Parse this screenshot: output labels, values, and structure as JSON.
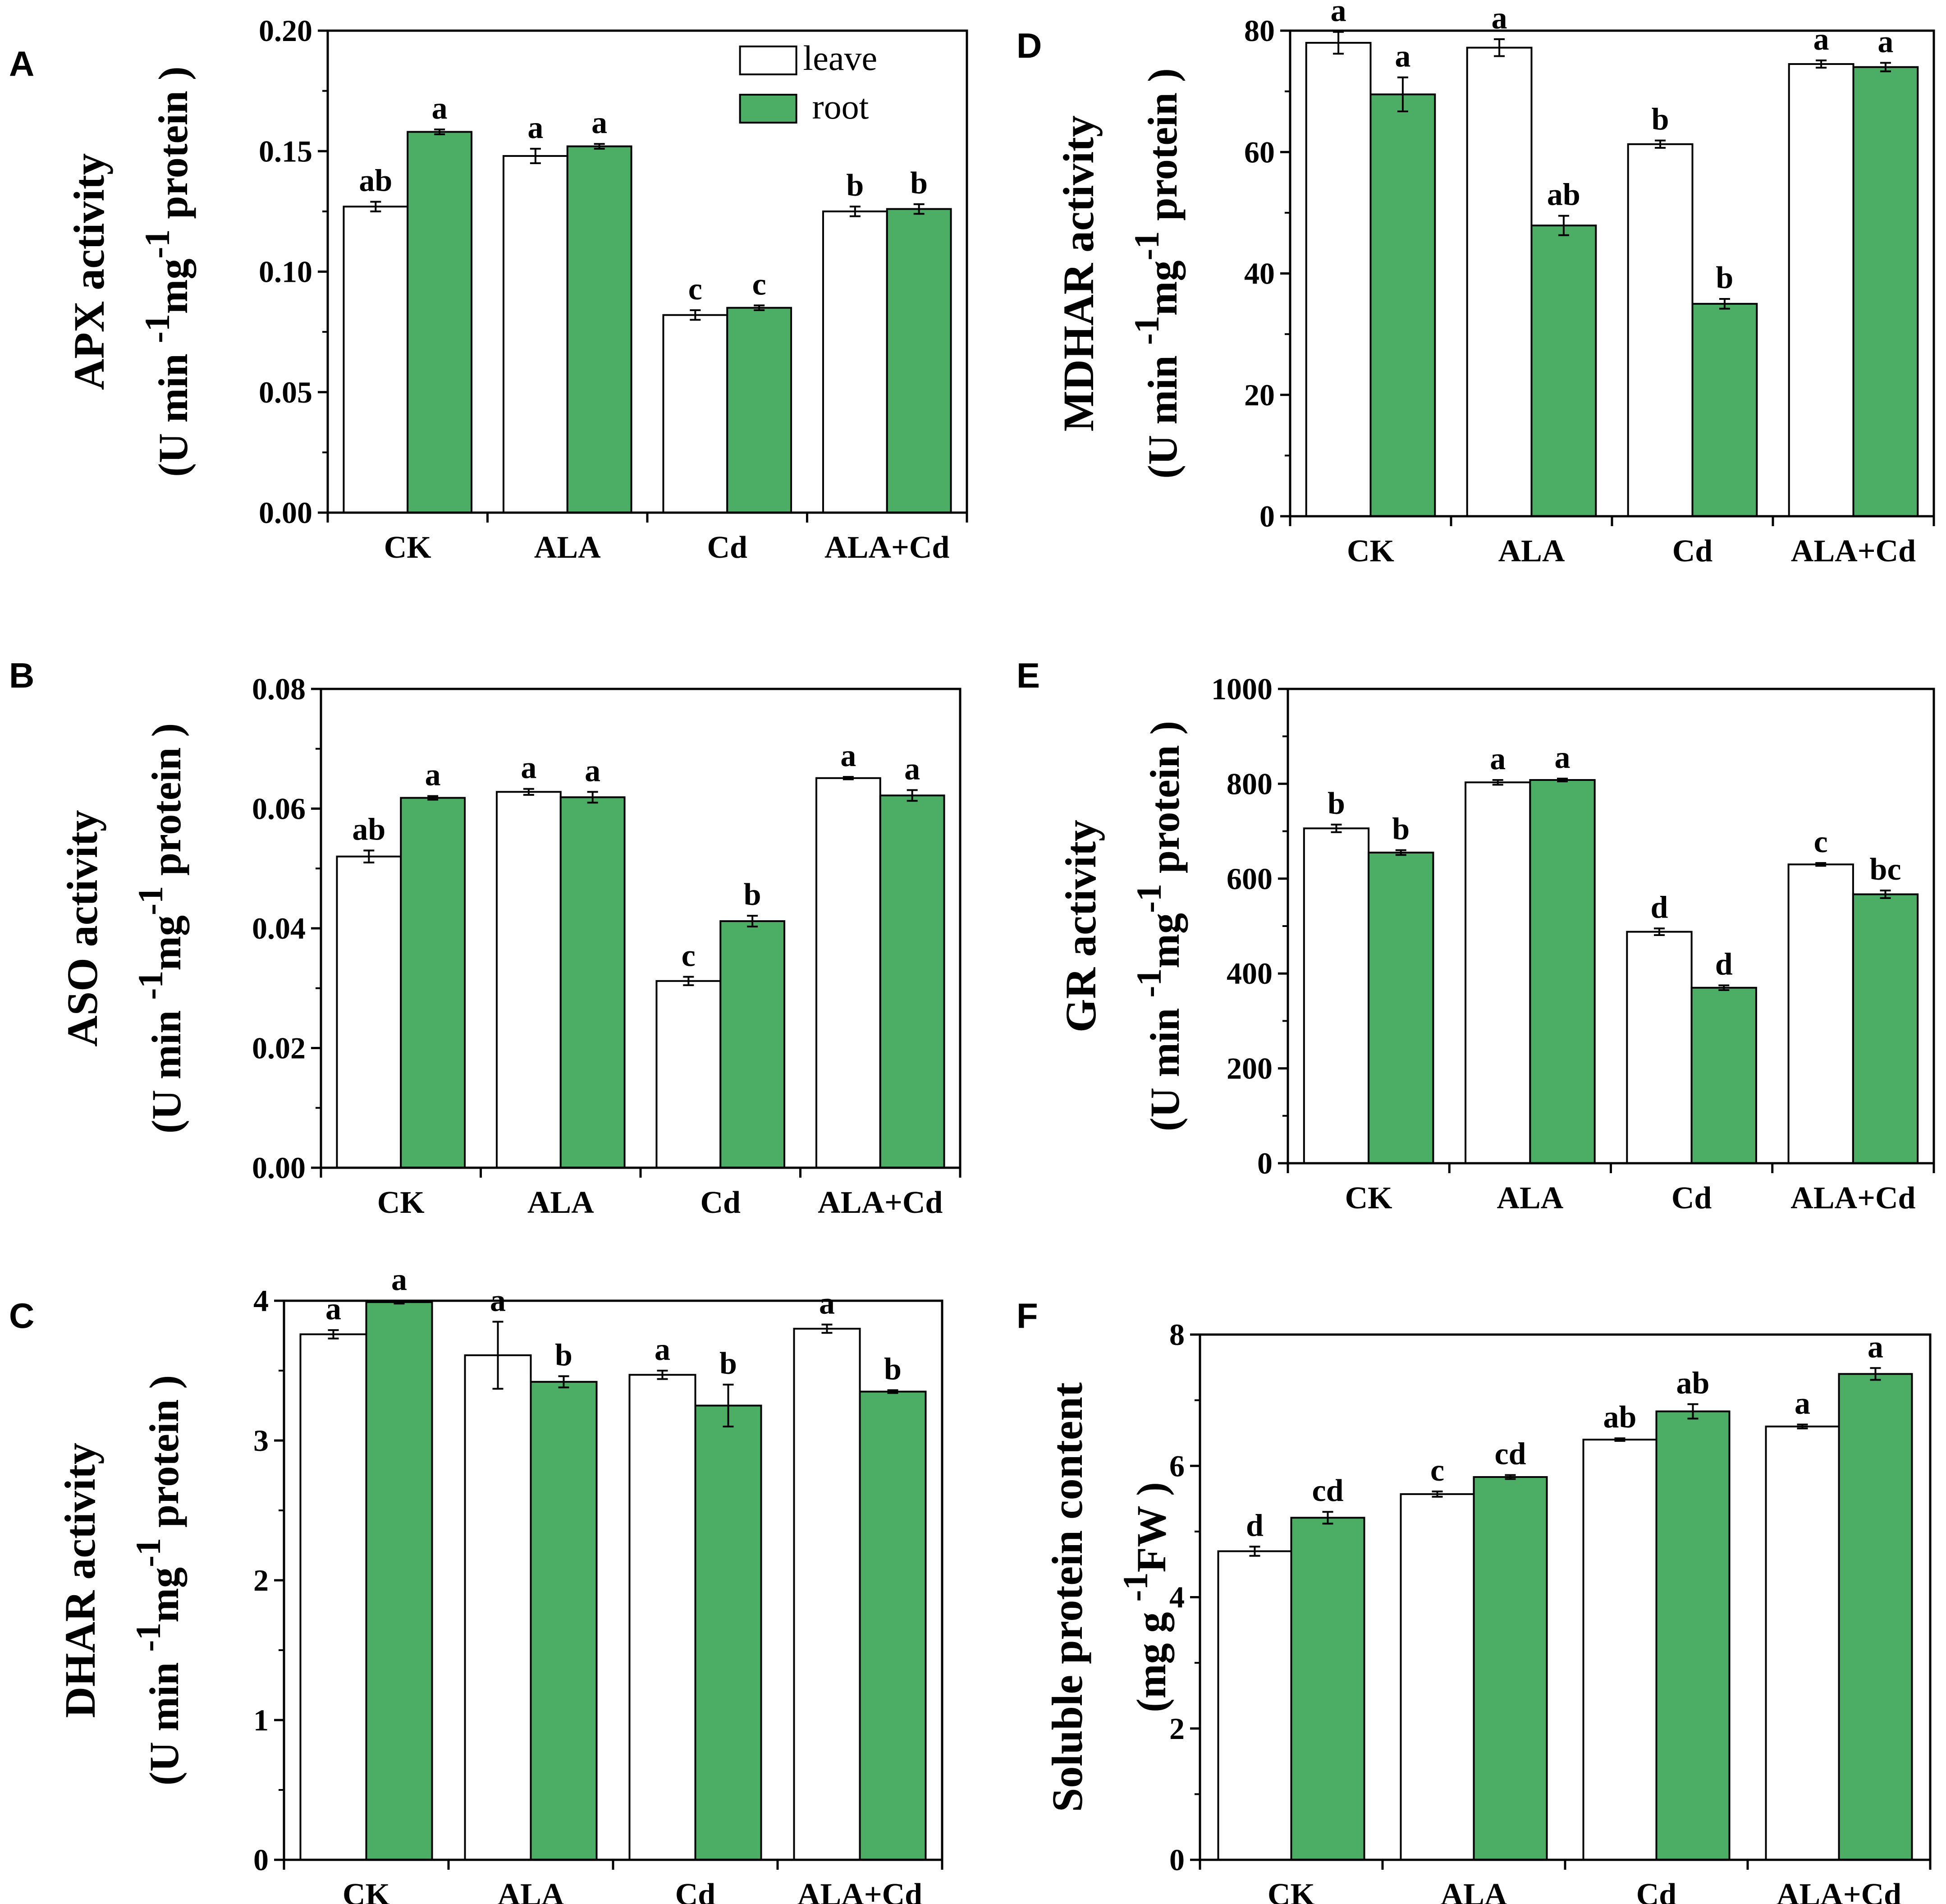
{
  "colors": {
    "leave": "#ffffff",
    "root": "#4cad64",
    "axis": "#000000"
  },
  "legend": {
    "leave": "leave",
    "root": "root"
  },
  "chart_data": [
    {
      "panel": "A",
      "type": "bar",
      "categories": [
        "CK",
        "ALA",
        "Cd",
        "ALA+Cd"
      ],
      "ylabel_top": "APX activity",
      "ylabel_unit_open": "(U min",
      "ylabel_unit_mid": "mg",
      "ylabel_unit_close": " protein )",
      "ylabel_sup": "-1",
      "ylim": [
        0,
        0.2
      ],
      "yticks": [
        "0.00",
        "0.05",
        "0.10",
        "0.15",
        "0.20"
      ],
      "series": [
        {
          "name": "leave",
          "values": [
            0.127,
            0.148,
            0.082,
            0.125
          ],
          "errors": [
            0.002,
            0.003,
            0.002,
            0.002
          ],
          "letters": [
            "ab",
            "a",
            "c",
            "b"
          ]
        },
        {
          "name": "root",
          "values": [
            0.158,
            0.152,
            0.085,
            0.126
          ],
          "errors": [
            0.001,
            0.001,
            0.001,
            0.002
          ],
          "letters": [
            "a",
            "a",
            "c",
            "b"
          ]
        }
      ],
      "show_legend": true
    },
    {
      "panel": "B",
      "type": "bar",
      "categories": [
        "CK",
        "ALA",
        "Cd",
        "ALA+Cd"
      ],
      "ylabel_top": "ASO activity",
      "ylabel_unit_open": "(U min",
      "ylabel_unit_mid": "mg",
      "ylabel_unit_close": " protein )",
      "ylabel_sup": "-1",
      "ylim": [
        0,
        0.08
      ],
      "yticks": [
        "0.00",
        "0.02",
        "0.04",
        "0.06",
        "0.08"
      ],
      "series": [
        {
          "name": "leave",
          "values": [
            0.052,
            0.0628,
            0.0312,
            0.0651
          ],
          "errors": [
            0.001,
            0.0005,
            0.0007,
            0.0002
          ],
          "letters": [
            "ab",
            "a",
            "c",
            "a"
          ]
        },
        {
          "name": "root",
          "values": [
            0.0618,
            0.0619,
            0.0412,
            0.0622
          ],
          "errors": [
            0.0003,
            0.0009,
            0.0009,
            0.0009
          ],
          "letters": [
            "a",
            "a",
            "b",
            "a"
          ]
        }
      ],
      "show_legend": false
    },
    {
      "panel": "C",
      "type": "bar",
      "categories": [
        "CK",
        "ALA",
        "Cd",
        "ALA+Cd"
      ],
      "ylabel_top": "DHAR activity",
      "ylabel_unit_open": "(U min",
      "ylabel_unit_mid": "mg",
      "ylabel_unit_close": " protein )",
      "ylabel_sup": "-1",
      "ylim": [
        0,
        4
      ],
      "yticks": [
        "0",
        "1",
        "2",
        "3",
        "4"
      ],
      "series": [
        {
          "name": "leave",
          "values": [
            3.76,
            3.61,
            3.47,
            3.8
          ],
          "errors": [
            0.03,
            0.24,
            0.03,
            0.03
          ],
          "letters": [
            "a",
            "a",
            "a",
            "a"
          ]
        },
        {
          "name": "root",
          "values": [
            3.99,
            3.42,
            3.25,
            3.35
          ],
          "errors": [
            0.01,
            0.04,
            0.15,
            0.01
          ],
          "letters": [
            "a",
            "b",
            "b",
            "b"
          ]
        }
      ],
      "show_legend": false
    },
    {
      "panel": "D",
      "type": "bar",
      "categories": [
        "CK",
        "ALA",
        "Cd",
        "ALA+Cd"
      ],
      "ylabel_top": "MDHAR activity",
      "ylabel_unit_open": "(U min",
      "ylabel_unit_mid": "mg",
      "ylabel_unit_close": " protein )",
      "ylabel_sup": "-1",
      "ylim": [
        0,
        80
      ],
      "yticks": [
        "0",
        "20",
        "40",
        "60",
        "80"
      ],
      "series": [
        {
          "name": "leave",
          "values": [
            78.0,
            77.2,
            61.3,
            74.5
          ],
          "errors": [
            1.8,
            1.4,
            0.6,
            0.6
          ],
          "letters": [
            "a",
            "a",
            "b",
            "a"
          ]
        },
        {
          "name": "root",
          "values": [
            69.5,
            47.9,
            35.0,
            74.0
          ],
          "errors": [
            2.8,
            1.6,
            0.8,
            0.7
          ],
          "letters": [
            "a",
            "ab",
            "b",
            "a"
          ]
        }
      ],
      "show_legend": false
    },
    {
      "panel": "E",
      "type": "bar",
      "categories": [
        "CK",
        "ALA",
        "Cd",
        "ALA+Cd"
      ],
      "ylabel_top": "GR activity",
      "ylabel_unit_open": "(U min",
      "ylabel_unit_mid": "mg",
      "ylabel_unit_close": " protein )",
      "ylabel_sup": "-1",
      "ylim": [
        0,
        1000
      ],
      "yticks": [
        "0",
        "200",
        "400",
        "600",
        "800",
        "1000"
      ],
      "series": [
        {
          "name": "leave",
          "values": [
            706,
            803,
            488,
            630
          ],
          "errors": [
            8,
            5,
            7,
            3
          ],
          "letters": [
            "b",
            "a",
            "d",
            "c"
          ]
        },
        {
          "name": "root",
          "values": [
            655,
            808,
            370,
            567
          ],
          "errors": [
            5,
            3,
            5,
            8
          ],
          "letters": [
            "b",
            "a",
            "d",
            "bc"
          ]
        }
      ],
      "show_legend": false
    },
    {
      "panel": "F",
      "type": "bar",
      "categories": [
        "CK",
        "ALA",
        "Cd",
        "ALA+Cd"
      ],
      "ylabel_top": "Soluble protein content",
      "ylabel_unit_open": "(mg g",
      "ylabel_unit_mid": "FW )",
      "ylabel_unit_close": "",
      "ylabel_sup": "-1",
      "ylim": [
        0,
        8
      ],
      "yticks": [
        "0",
        "2",
        "4",
        "6",
        "8"
      ],
      "series": [
        {
          "name": "leave",
          "values": [
            4.7,
            5.57,
            6.4,
            6.6
          ],
          "errors": [
            0.07,
            0.04,
            0.02,
            0.03
          ],
          "letters": [
            "d",
            "c",
            "ab",
            "a"
          ]
        },
        {
          "name": "root",
          "values": [
            5.21,
            5.83,
            6.83,
            7.4
          ],
          "errors": [
            0.09,
            0.03,
            0.11,
            0.09
          ],
          "letters": [
            "cd",
            "cd",
            "ab",
            "a"
          ]
        }
      ],
      "show_legend": false
    }
  ]
}
